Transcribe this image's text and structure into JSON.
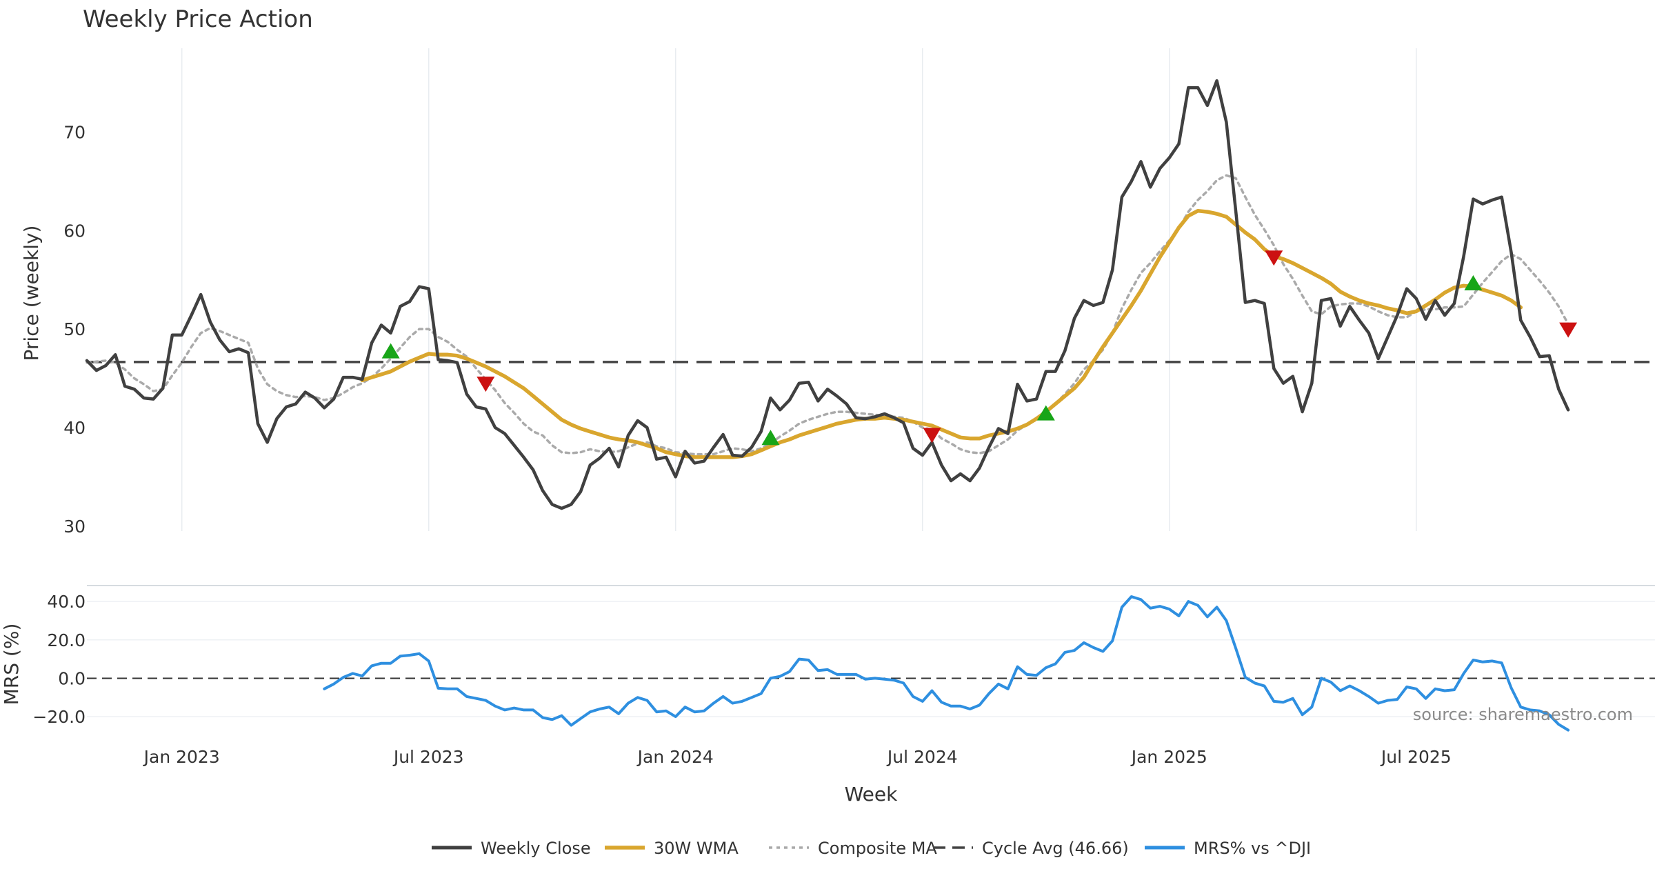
{
  "chart_data": {
    "type": "line",
    "title": "Weekly Price Action",
    "xlabel": "Week",
    "x_ticks": [
      "Jan 2023",
      "Jul 2023",
      "Jan 2024",
      "Jul 2024",
      "Jan 2025",
      "Jul 2025"
    ],
    "x_tick_weeks": [
      10,
      36,
      62,
      88,
      114,
      140
    ],
    "price_panel": {
      "ylabel": "Price (weekly)",
      "ylim": [
        29.5,
        78.5
      ],
      "y_ticks": [
        30,
        40,
        50,
        60,
        70
      ],
      "y_tick_labels": [
        "30",
        "40",
        "50",
        "60",
        "70"
      ]
    },
    "mrs_panel": {
      "ylabel": "MRS (%)",
      "ylim": [
        -27.5,
        46.5
      ],
      "y_ticks": [
        40,
        20,
        0,
        -20
      ],
      "y_tick_labels": [
        "40.0",
        "20.0",
        "0.0",
        "−20.0"
      ],
      "zero_line": 0
    },
    "cycle_avg": 46.66,
    "series": [
      {
        "name": "Weekly Close",
        "color": "#404040",
        "start_week": 0,
        "values": [
          46.8,
          45.8,
          46.3,
          47.4,
          44.2,
          43.9,
          43.0,
          42.9,
          44.0,
          49.4,
          49.4,
          51.4,
          53.5,
          50.7,
          48.9,
          47.7,
          48.0,
          47.6,
          40.4,
          38.5,
          40.9,
          42.1,
          42.4,
          43.6,
          43.0,
          42.0,
          42.9,
          45.1,
          45.1,
          44.9,
          48.6,
          50.4,
          49.6,
          52.3,
          52.8,
          54.3,
          54.1,
          46.9,
          46.8,
          46.6,
          43.4,
          42.1,
          41.9,
          40.0,
          39.4,
          38.2,
          37.0,
          35.7,
          33.6,
          32.2,
          31.8,
          32.2,
          33.5,
          36.2,
          36.9,
          37.9,
          36.0,
          39.2,
          40.7,
          40.0,
          36.8,
          37.0,
          35.0,
          37.6,
          36.4,
          36.6,
          38.0,
          39.3,
          37.2,
          37.1,
          38.0,
          39.6,
          43.0,
          41.8,
          42.8,
          44.5,
          44.6,
          42.7,
          43.9,
          43.2,
          42.4,
          41.0,
          40.9,
          41.1,
          41.4,
          41.0,
          40.5,
          37.9,
          37.2,
          38.5,
          36.2,
          34.6,
          35.3,
          34.6,
          35.9,
          38.0,
          39.9,
          39.4,
          44.4,
          42.7,
          42.9,
          45.7,
          45.7,
          47.8,
          51.1,
          52.9,
          52.4,
          52.7,
          56.0,
          63.4,
          65.0,
          67.0,
          64.4,
          66.3,
          67.4,
          68.8,
          74.5,
          74.5,
          72.7,
          75.2,
          71.0,
          61.9,
          52.7,
          52.9,
          52.6,
          46.0,
          44.5,
          45.2,
          41.6,
          44.5,
          52.9,
          53.1,
          50.3,
          52.3,
          50.9,
          49.6,
          47.0,
          49.2,
          51.4,
          54.1,
          53.1,
          51.0,
          52.9,
          51.4,
          52.6,
          57.4,
          63.2,
          62.7,
          63.1,
          63.4,
          57.8,
          50.9,
          49.2,
          47.2,
          47.3,
          43.9,
          41.8
        ]
      },
      {
        "name": "30W WMA",
        "color": "#d9a62e",
        "start_week": 29,
        "values": [
          44.8,
          45.1,
          45.4,
          45.7,
          46.2,
          46.7,
          47.1,
          47.5,
          47.4,
          47.4,
          47.3,
          47.0,
          46.6,
          46.2,
          45.7,
          45.2,
          44.6,
          44.0,
          43.2,
          42.4,
          41.6,
          40.8,
          40.3,
          39.9,
          39.6,
          39.3,
          39.0,
          38.8,
          38.7,
          38.5,
          38.2,
          37.9,
          37.5,
          37.3,
          37.1,
          37.0,
          37.0,
          37.0,
          37.0,
          37.0,
          37.1,
          37.3,
          37.7,
          38.1,
          38.5,
          38.8,
          39.2,
          39.5,
          39.8,
          40.1,
          40.4,
          40.6,
          40.8,
          40.9,
          40.9,
          41.0,
          40.9,
          40.8,
          40.6,
          40.4,
          40.2,
          39.8,
          39.4,
          39.0,
          38.9,
          38.9,
          39.2,
          39.4,
          39.6,
          39.9,
          40.3,
          40.9,
          41.6,
          42.4,
          43.2,
          44.0,
          45.1,
          46.7,
          48.2,
          49.6,
          51.0,
          52.4,
          53.9,
          55.6,
          57.3,
          58.8,
          60.3,
          61.5,
          62.0,
          61.9,
          61.7,
          61.4,
          60.6,
          59.8,
          59.1,
          58.1,
          57.4,
          57.1,
          56.7,
          56.2,
          55.7,
          55.2,
          54.6,
          53.8,
          53.3,
          52.9,
          52.6,
          52.4,
          52.1,
          51.9,
          51.6,
          51.8,
          52.4,
          53.0,
          53.7,
          54.2,
          54.4,
          54.3,
          54.0,
          53.7,
          53.4,
          52.9,
          52.2
        ]
      },
      {
        "name": "Composite MA",
        "color": "#aaaaaa",
        "start_week": 0,
        "values": [
          46.6,
          46.7,
          46.8,
          46.6,
          45.9,
          45.0,
          44.4,
          43.7,
          43.9,
          45.3,
          46.6,
          48.2,
          49.6,
          50.1,
          49.8,
          49.4,
          49.0,
          48.6,
          46.0,
          44.4,
          43.7,
          43.3,
          43.1,
          43.2,
          43.1,
          42.8,
          43.0,
          43.5,
          44.1,
          44.5,
          45.1,
          46.0,
          47.0,
          48.1,
          49.2,
          50.0,
          50.0,
          49.2,
          48.7,
          47.9,
          47.2,
          46.0,
          44.9,
          43.8,
          42.5,
          41.5,
          40.4,
          39.6,
          39.2,
          38.2,
          37.5,
          37.4,
          37.5,
          37.8,
          37.6,
          37.5,
          37.6,
          38.0,
          38.4,
          38.5,
          38.1,
          37.9,
          37.5,
          37.4,
          37.3,
          37.3,
          37.3,
          37.6,
          37.9,
          37.8,
          37.6,
          37.9,
          38.4,
          39.1,
          39.7,
          40.4,
          40.8,
          41.1,
          41.4,
          41.6,
          41.6,
          41.5,
          41.4,
          41.3,
          41.2,
          41.1,
          41.0,
          40.6,
          40.0,
          39.8,
          38.9,
          38.4,
          37.8,
          37.5,
          37.4,
          37.6,
          38.2,
          38.8,
          39.7,
          40.3,
          40.8,
          41.6,
          42.4,
          43.4,
          44.5,
          45.9,
          46.8,
          47.9,
          49.6,
          52.1,
          54.0,
          55.7,
          56.7,
          57.9,
          59.0,
          60.2,
          61.9,
          63.1,
          64.0,
          65.1,
          65.6,
          65.3,
          63.4,
          61.6,
          60.1,
          58.5,
          56.6,
          55.1,
          53.4,
          51.8,
          51.5,
          52.3,
          52.5,
          52.6,
          52.6,
          52.3,
          51.8,
          51.4,
          51.2,
          51.2,
          51.8,
          52.0,
          52.0,
          52.2,
          52.2,
          52.3,
          53.5,
          54.7,
          55.8,
          56.9,
          57.6,
          57.1,
          56.0,
          54.9,
          53.7,
          52.3,
          50.5
        ]
      },
      {
        "name": "Cycle Avg (46.66)",
        "color": "#444444",
        "constant": 46.66
      },
      {
        "name": "MRS% vs ^DJI",
        "color": "#2e8fe0",
        "start_week": 25,
        "values": [
          -5.5,
          -3.0,
          0.5,
          2.5,
          1.2,
          6.5,
          7.8,
          7.8,
          11.5,
          12.0,
          12.8,
          9.0,
          -5.2,
          -5.5,
          -5.5,
          -9.5,
          -10.5,
          -11.5,
          -14.5,
          -16.5,
          -15.5,
          -16.5,
          -16.5,
          -20.5,
          -21.5,
          -19.5,
          -24.5,
          -21.0,
          -17.5,
          -16.0,
          -15.0,
          -18.5,
          -13.0,
          -10.0,
          -11.5,
          -17.5,
          -17.0,
          -20.0,
          -15.0,
          -17.5,
          -17.0,
          -13.0,
          -9.5,
          -13.0,
          -12.0,
          -10.0,
          -8.0,
          0.0,
          1.0,
          3.5,
          10.0,
          9.5,
          4.0,
          4.5,
          2.0,
          2.0,
          2.0,
          -0.5,
          0.0,
          -0.5,
          -1.0,
          -2.5,
          -9.5,
          -12.0,
          -6.5,
          -12.5,
          -14.5,
          -14.5,
          -16.0,
          -14.0,
          -8.0,
          -3.0,
          -5.5,
          6.0,
          2.0,
          1.5,
          5.5,
          7.5,
          13.5,
          14.5,
          18.5,
          16.0,
          14.0,
          19.5,
          37.0,
          42.5,
          41.0,
          36.5,
          37.5,
          36.0,
          32.5,
          40.0,
          38.0,
          32.0,
          37.0,
          30.0,
          15.5,
          0.5,
          -2.5,
          -4.0,
          -12.0,
          -12.5,
          -10.5,
          -19.0,
          -15.0,
          0.0,
          -2.0,
          -6.5,
          -4.0,
          -6.5,
          -9.5,
          -13.0,
          -11.5,
          -11.0,
          -4.5,
          -5.5,
          -10.5,
          -5.5,
          -6.5,
          -6.0,
          2.5,
          9.5,
          8.5,
          9.0,
          8.0,
          -5.0,
          -15.0,
          -16.5,
          -17.0,
          -19.0,
          -24.0,
          -27.0
        ]
      }
    ],
    "signals": {
      "buy": [
        {
          "week": 32,
          "value": 47.8
        },
        {
          "week": 72,
          "value": 39.0
        },
        {
          "week": 101,
          "value": 41.5
        },
        {
          "week": 146,
          "value": 54.7
        }
      ],
      "sell": [
        {
          "week": 42,
          "value": 44.4
        },
        {
          "week": 89,
          "value": 39.2
        },
        {
          "week": 125,
          "value": 57.2
        },
        {
          "week": 156,
          "value": 49.9
        }
      ]
    },
    "legend": {
      "placement": "bottom-center",
      "items": [
        "Weekly Close",
        "30W WMA",
        "Composite MA",
        "Cycle Avg (46.66)",
        "MRS% vs ^DJI"
      ]
    },
    "annotation": "source: sharemaestro.com"
  }
}
